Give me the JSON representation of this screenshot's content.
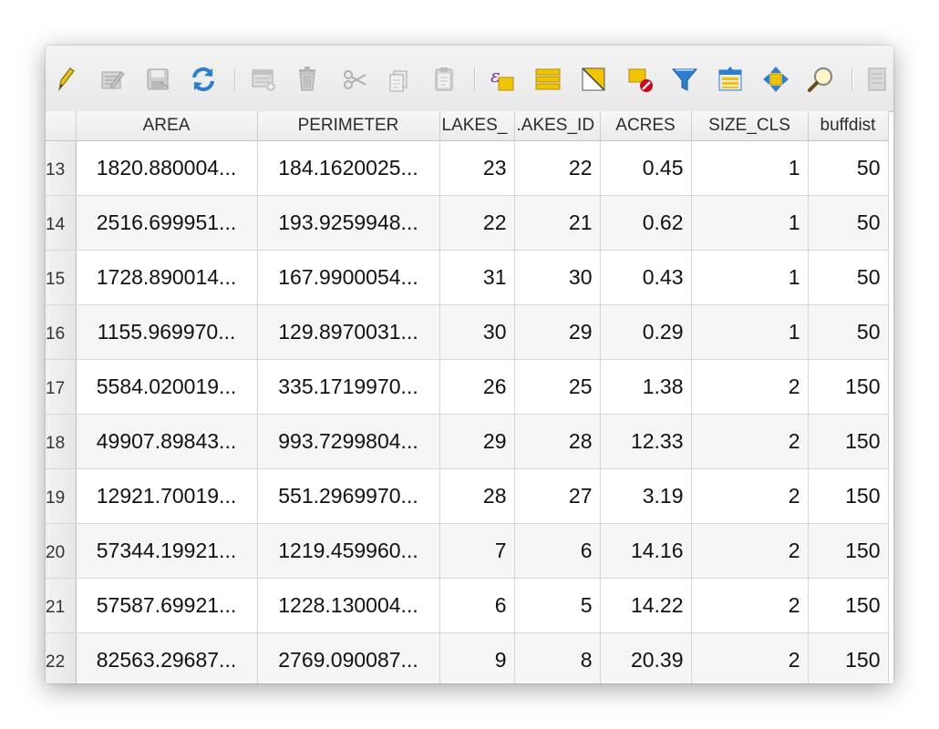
{
  "toolbar": {
    "buttons": [
      {
        "name": "toggle-editing-icon"
      },
      {
        "name": "toggle-multi-edit-icon"
      },
      {
        "name": "save-edits-icon"
      },
      {
        "name": "reload-table-icon"
      },
      {
        "name": "add-feature-icon"
      },
      {
        "name": "delete-selected-icon"
      },
      {
        "name": "cut-icon"
      },
      {
        "name": "copy-icon"
      },
      {
        "name": "paste-icon"
      },
      {
        "name": "select-by-expression-icon"
      },
      {
        "name": "select-all-icon"
      },
      {
        "name": "invert-selection-icon"
      },
      {
        "name": "deselect-all-icon"
      },
      {
        "name": "filter-icon"
      },
      {
        "name": "move-selection-to-top-icon"
      },
      {
        "name": "pan-to-selected-icon"
      },
      {
        "name": "zoom-to-selected-icon"
      },
      {
        "name": "new-field-icon"
      }
    ],
    "colors": {
      "pencil": "#e0b800",
      "yellow": "#f2c400",
      "blue": "#2a7fd4",
      "red": "#d0021b",
      "gray": "#a8a8a8"
    }
  },
  "table": {
    "columns": [
      "AREA",
      "PERIMETER",
      "LAKES_",
      "LAKES_ID",
      "ACRES",
      "SIZE_CLS",
      "buffdist"
    ],
    "column_headers_visible": [
      "AREA",
      "PERIMETER",
      "LAKES_",
      ".AKES_ID",
      "ACRES",
      "SIZE_CLS",
      "buffdist"
    ],
    "rows": [
      {
        "num": "13",
        "AREA": "1820.880004...",
        "PERIMETER": "184.1620025...",
        "LAKES_": "23",
        "LAKES_ID": "22",
        "ACRES": "0.45",
        "SIZE_CLS": "1",
        "buffdist": "50"
      },
      {
        "num": "14",
        "AREA": "2516.699951...",
        "PERIMETER": "193.9259948...",
        "LAKES_": "22",
        "LAKES_ID": "21",
        "ACRES": "0.62",
        "SIZE_CLS": "1",
        "buffdist": "50"
      },
      {
        "num": "15",
        "AREA": "1728.890014...",
        "PERIMETER": "167.9900054...",
        "LAKES_": "31",
        "LAKES_ID": "30",
        "ACRES": "0.43",
        "SIZE_CLS": "1",
        "buffdist": "50"
      },
      {
        "num": "16",
        "AREA": "1155.969970...",
        "PERIMETER": "129.8970031...",
        "LAKES_": "30",
        "LAKES_ID": "29",
        "ACRES": "0.29",
        "SIZE_CLS": "1",
        "buffdist": "50"
      },
      {
        "num": "17",
        "AREA": "5584.020019...",
        "PERIMETER": "335.1719970...",
        "LAKES_": "26",
        "LAKES_ID": "25",
        "ACRES": "1.38",
        "SIZE_CLS": "2",
        "buffdist": "150"
      },
      {
        "num": "18",
        "AREA": "49907.89843...",
        "PERIMETER": "993.7299804...",
        "LAKES_": "29",
        "LAKES_ID": "28",
        "ACRES": "12.33",
        "SIZE_CLS": "2",
        "buffdist": "150"
      },
      {
        "num": "19",
        "AREA": "12921.70019...",
        "PERIMETER": "551.2969970...",
        "LAKES_": "28",
        "LAKES_ID": "27",
        "ACRES": "3.19",
        "SIZE_CLS": "2",
        "buffdist": "150"
      },
      {
        "num": "20",
        "AREA": "57344.19921...",
        "PERIMETER": "1219.459960...",
        "LAKES_": "7",
        "LAKES_ID": "6",
        "ACRES": "14.16",
        "SIZE_CLS": "2",
        "buffdist": "150"
      },
      {
        "num": "21",
        "AREA": "57587.69921...",
        "PERIMETER": "1228.130004...",
        "LAKES_": "6",
        "LAKES_ID": "5",
        "ACRES": "14.22",
        "SIZE_CLS": "2",
        "buffdist": "150"
      },
      {
        "num": "22",
        "AREA": "82563.29687...",
        "PERIMETER": "2769.090087...",
        "LAKES_": "9",
        "LAKES_ID": "8",
        "ACRES": "20.39",
        "SIZE_CLS": "2",
        "buffdist": "150"
      }
    ]
  }
}
